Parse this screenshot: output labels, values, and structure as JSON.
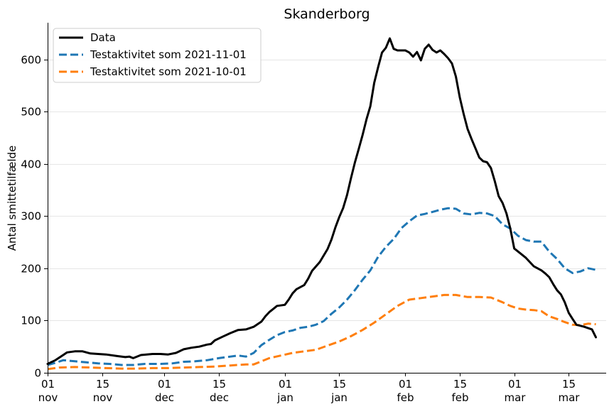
{
  "chart_data": {
    "type": "line",
    "title": "Skanderborg",
    "xlabel": "",
    "ylabel": "Antal smittetilfælde",
    "x_range": [
      "2021-11-01",
      "2022-03-22"
    ],
    "ylim": [
      0,
      670
    ],
    "grid": "horizontal",
    "legend_position": "top-left",
    "y_ticks": [
      0,
      100,
      200,
      300,
      400,
      500,
      600
    ],
    "x_ticks": [
      {
        "date": "2021-11-01",
        "day": "01",
        "month": "nov"
      },
      {
        "date": "2021-11-15",
        "day": "15",
        "month": "nov"
      },
      {
        "date": "2021-12-01",
        "day": "01",
        "month": "dec"
      },
      {
        "date": "2021-12-15",
        "day": "15",
        "month": "dec"
      },
      {
        "date": "2022-01-01",
        "day": "01",
        "month": "jan"
      },
      {
        "date": "2022-01-15",
        "day": "15",
        "month": "jan"
      },
      {
        "date": "2022-02-01",
        "day": "01",
        "month": "feb"
      },
      {
        "date": "2022-02-15",
        "day": "15",
        "month": "feb"
      },
      {
        "date": "2022-03-01",
        "day": "01",
        "month": "mar"
      },
      {
        "date": "2022-03-15",
        "day": "15",
        "month": "mar"
      }
    ],
    "series": [
      {
        "name": "Data",
        "color": "#000000",
        "style": "solid",
        "points": [
          [
            "2021-11-01",
            17
          ],
          [
            "2021-11-03",
            24
          ],
          [
            "2021-11-05",
            34
          ],
          [
            "2021-11-06",
            39
          ],
          [
            "2021-11-08",
            41
          ],
          [
            "2021-11-10",
            41
          ],
          [
            "2021-11-12",
            37
          ],
          [
            "2021-11-14",
            36
          ],
          [
            "2021-11-16",
            35
          ],
          [
            "2021-11-19",
            32
          ],
          [
            "2021-11-21",
            30
          ],
          [
            "2021-11-22",
            31
          ],
          [
            "2021-11-23",
            28
          ],
          [
            "2021-11-25",
            34
          ],
          [
            "2021-11-28",
            36
          ],
          [
            "2021-11-30",
            36
          ],
          [
            "2021-12-02",
            35
          ],
          [
            "2021-12-04",
            38
          ],
          [
            "2021-12-06",
            45
          ],
          [
            "2021-12-08",
            48
          ],
          [
            "2021-12-10",
            50
          ],
          [
            "2021-12-12",
            54
          ],
          [
            "2021-12-13",
            55
          ],
          [
            "2021-12-14",
            62
          ],
          [
            "2021-12-16",
            69
          ],
          [
            "2021-12-18",
            76
          ],
          [
            "2021-12-20",
            82
          ],
          [
            "2021-12-22",
            83
          ],
          [
            "2021-12-24",
            88
          ],
          [
            "2021-12-26",
            98
          ],
          [
            "2021-12-27",
            108
          ],
          [
            "2021-12-28",
            116
          ],
          [
            "2021-12-30",
            128
          ],
          [
            "2022-01-01",
            130
          ],
          [
            "2022-01-02",
            140
          ],
          [
            "2022-01-03",
            152
          ],
          [
            "2022-01-04",
            160
          ],
          [
            "2022-01-06",
            168
          ],
          [
            "2022-01-07",
            180
          ],
          [
            "2022-01-08",
            195
          ],
          [
            "2022-01-10",
            212
          ],
          [
            "2022-01-12",
            237
          ],
          [
            "2022-01-13",
            255
          ],
          [
            "2022-01-14",
            278
          ],
          [
            "2022-01-15",
            298
          ],
          [
            "2022-01-16",
            315
          ],
          [
            "2022-01-17",
            340
          ],
          [
            "2022-01-18",
            372
          ],
          [
            "2022-01-19",
            402
          ],
          [
            "2022-01-20",
            428
          ],
          [
            "2022-01-21",
            455
          ],
          [
            "2022-01-22",
            485
          ],
          [
            "2022-01-23",
            510
          ],
          [
            "2022-01-24",
            555
          ],
          [
            "2022-01-25",
            585
          ],
          [
            "2022-01-26",
            613
          ],
          [
            "2022-01-27",
            622
          ],
          [
            "2022-01-28",
            640
          ],
          [
            "2022-01-29",
            620
          ],
          [
            "2022-01-30",
            617
          ],
          [
            "2022-02-01",
            617
          ],
          [
            "2022-02-02",
            613
          ],
          [
            "2022-02-03",
            605
          ],
          [
            "2022-02-04",
            614
          ],
          [
            "2022-02-05",
            598
          ],
          [
            "2022-02-06",
            620
          ],
          [
            "2022-02-07",
            628
          ],
          [
            "2022-02-08",
            618
          ],
          [
            "2022-02-09",
            613
          ],
          [
            "2022-02-10",
            617
          ],
          [
            "2022-02-11",
            610
          ],
          [
            "2022-02-12",
            602
          ],
          [
            "2022-02-13",
            592
          ],
          [
            "2022-02-14",
            567
          ],
          [
            "2022-02-15",
            527
          ],
          [
            "2022-02-16",
            495
          ],
          [
            "2022-02-17",
            467
          ],
          [
            "2022-02-18",
            448
          ],
          [
            "2022-02-19",
            430
          ],
          [
            "2022-02-20",
            412
          ],
          [
            "2022-02-21",
            405
          ],
          [
            "2022-02-22",
            403
          ],
          [
            "2022-02-23",
            392
          ],
          [
            "2022-02-24",
            367
          ],
          [
            "2022-02-25",
            338
          ],
          [
            "2022-02-26",
            325
          ],
          [
            "2022-02-27",
            305
          ],
          [
            "2022-02-28",
            276
          ],
          [
            "2022-03-01",
            238
          ],
          [
            "2022-03-02",
            232
          ],
          [
            "2022-03-04",
            220
          ],
          [
            "2022-03-06",
            204
          ],
          [
            "2022-03-08",
            196
          ],
          [
            "2022-03-09",
            190
          ],
          [
            "2022-03-10",
            183
          ],
          [
            "2022-03-11",
            170
          ],
          [
            "2022-03-12",
            158
          ],
          [
            "2022-03-13",
            150
          ],
          [
            "2022-03-14",
            135
          ],
          [
            "2022-03-15",
            115
          ],
          [
            "2022-03-16",
            103
          ],
          [
            "2022-03-17",
            92
          ],
          [
            "2022-03-19",
            88
          ],
          [
            "2022-03-21",
            83
          ],
          [
            "2022-03-22",
            68
          ]
        ]
      },
      {
        "name": "Testaktivitet som 2021-11-01",
        "color": "#1f77b4",
        "style": "dashed",
        "points": [
          [
            "2021-11-01",
            15
          ],
          [
            "2021-11-03",
            19
          ],
          [
            "2021-11-05",
            24
          ],
          [
            "2021-11-08",
            22
          ],
          [
            "2021-11-11",
            20
          ],
          [
            "2021-11-14",
            18
          ],
          [
            "2021-11-17",
            17
          ],
          [
            "2021-11-20",
            15
          ],
          [
            "2021-11-23",
            15
          ],
          [
            "2021-11-26",
            17
          ],
          [
            "2021-11-30",
            17
          ],
          [
            "2021-12-03",
            18
          ],
          [
            "2021-12-06",
            21
          ],
          [
            "2021-12-09",
            22
          ],
          [
            "2021-12-12",
            24
          ],
          [
            "2021-12-15",
            28
          ],
          [
            "2021-12-18",
            31
          ],
          [
            "2021-12-20",
            33
          ],
          [
            "2021-12-22",
            31
          ],
          [
            "2021-12-24",
            38
          ],
          [
            "2021-12-26",
            53
          ],
          [
            "2021-12-28",
            63
          ],
          [
            "2021-12-30",
            72
          ],
          [
            "2022-01-01",
            78
          ],
          [
            "2022-01-03",
            81
          ],
          [
            "2022-01-05",
            86
          ],
          [
            "2022-01-07",
            88
          ],
          [
            "2022-01-09",
            92
          ],
          [
            "2022-01-11",
            99
          ],
          [
            "2022-01-13",
            113
          ],
          [
            "2022-01-15",
            125
          ],
          [
            "2022-01-17",
            140
          ],
          [
            "2022-01-19",
            158
          ],
          [
            "2022-01-21",
            178
          ],
          [
            "2022-01-23",
            196
          ],
          [
            "2022-01-25",
            222
          ],
          [
            "2022-01-27",
            241
          ],
          [
            "2022-01-29",
            256
          ],
          [
            "2022-01-31",
            277
          ],
          [
            "2022-02-02",
            290
          ],
          [
            "2022-02-04",
            301
          ],
          [
            "2022-02-06",
            304
          ],
          [
            "2022-02-08",
            308
          ],
          [
            "2022-02-10",
            312
          ],
          [
            "2022-02-12",
            315
          ],
          [
            "2022-02-14",
            314
          ],
          [
            "2022-02-16",
            305
          ],
          [
            "2022-02-18",
            303
          ],
          [
            "2022-02-20",
            306
          ],
          [
            "2022-02-22",
            305
          ],
          [
            "2022-02-24",
            300
          ],
          [
            "2022-02-26",
            284
          ],
          [
            "2022-02-28",
            276
          ],
          [
            "2022-03-02",
            262
          ],
          [
            "2022-03-04",
            254
          ],
          [
            "2022-03-06",
            251
          ],
          [
            "2022-03-08",
            251
          ],
          [
            "2022-03-10",
            232
          ],
          [
            "2022-03-12",
            218
          ],
          [
            "2022-03-14",
            200
          ],
          [
            "2022-03-16",
            191
          ],
          [
            "2022-03-18",
            194
          ],
          [
            "2022-03-20",
            200
          ],
          [
            "2022-03-22",
            197
          ]
        ]
      },
      {
        "name": "Testaktivitet som 2021-10-01",
        "color": "#ff7f0e",
        "style": "dashed",
        "points": [
          [
            "2021-11-01",
            7
          ],
          [
            "2021-11-04",
            10
          ],
          [
            "2021-11-08",
            11
          ],
          [
            "2021-11-12",
            10
          ],
          [
            "2021-11-16",
            9
          ],
          [
            "2021-11-20",
            8
          ],
          [
            "2021-11-24",
            8
          ],
          [
            "2021-11-28",
            9
          ],
          [
            "2021-12-02",
            9
          ],
          [
            "2021-12-06",
            10
          ],
          [
            "2021-12-10",
            11
          ],
          [
            "2021-12-14",
            12
          ],
          [
            "2021-12-18",
            14
          ],
          [
            "2021-12-22",
            16
          ],
          [
            "2021-12-24",
            16
          ],
          [
            "2021-12-26",
            22
          ],
          [
            "2021-12-28",
            28
          ],
          [
            "2021-12-31",
            33
          ],
          [
            "2022-01-03",
            38
          ],
          [
            "2022-01-06",
            41
          ],
          [
            "2022-01-09",
            44
          ],
          [
            "2022-01-12",
            52
          ],
          [
            "2022-01-15",
            60
          ],
          [
            "2022-01-18",
            70
          ],
          [
            "2022-01-21",
            82
          ],
          [
            "2022-01-24",
            96
          ],
          [
            "2022-01-27",
            112
          ],
          [
            "2022-01-30",
            128
          ],
          [
            "2022-02-02",
            140
          ],
          [
            "2022-02-05",
            143
          ],
          [
            "2022-02-08",
            146
          ],
          [
            "2022-02-11",
            149
          ],
          [
            "2022-02-14",
            149
          ],
          [
            "2022-02-17",
            145
          ],
          [
            "2022-02-20",
            145
          ],
          [
            "2022-02-23",
            144
          ],
          [
            "2022-02-26",
            135
          ],
          [
            "2022-02-28",
            128
          ],
          [
            "2022-03-02",
            123
          ],
          [
            "2022-03-04",
            121
          ],
          [
            "2022-03-06",
            120
          ],
          [
            "2022-03-08",
            118
          ],
          [
            "2022-03-10",
            108
          ],
          [
            "2022-03-12",
            103
          ],
          [
            "2022-03-14",
            97
          ],
          [
            "2022-03-16",
            92
          ],
          [
            "2022-03-18",
            91
          ],
          [
            "2022-03-20",
            94
          ],
          [
            "2022-03-22",
            93
          ]
        ]
      }
    ]
  }
}
